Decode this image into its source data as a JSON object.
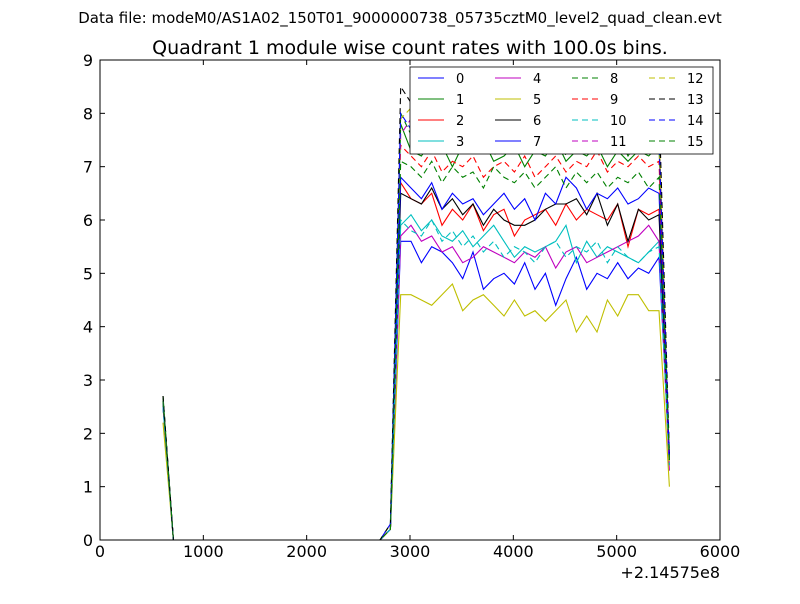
{
  "header": {
    "file_label": "Data file: modeM0/AS1A02_150T01_9000000738_05735cztM0_level2_quad_clean.evt"
  },
  "chart_data": {
    "type": "line",
    "title": "Quadrant 1 module wise count rates with 100.0s bins.",
    "xlabel": "",
    "ylabel": "",
    "x_offset_label": "+2.14575e8",
    "xlim": [
      0,
      6000
    ],
    "ylim": [
      0,
      9
    ],
    "x_ticks": [
      0,
      1000,
      2000,
      3000,
      4000,
      5000,
      6000
    ],
    "y_ticks": [
      0,
      1,
      2,
      3,
      4,
      5,
      6,
      7,
      8,
      9
    ],
    "grid": false,
    "legend_position": "top-right",
    "x": [
      610,
      710,
      2710,
      2810,
      2910,
      3010,
      3110,
      3210,
      3310,
      3410,
      3510,
      3610,
      3710,
      3810,
      3910,
      4010,
      4110,
      4210,
      4310,
      4410,
      4510,
      4610,
      4710,
      4810,
      4910,
      5010,
      5110,
      5210,
      5310,
      5410,
      5510
    ],
    "series": [
      {
        "name": "0",
        "color": "#0000ff",
        "dash": "solid",
        "values": [
          2.5,
          0,
          0,
          0.2,
          5.6,
          5.6,
          5.2,
          5.5,
          5.4,
          5.2,
          4.9,
          5.4,
          4.7,
          4.9,
          5.0,
          4.8,
          5.2,
          4.7,
          5.0,
          4.4,
          4.9,
          5.3,
          4.7,
          5.0,
          4.9,
          5.2,
          4.9,
          5.1,
          5.0,
          5.3,
          1.5
        ]
      },
      {
        "name": "1",
        "color": "#008000",
        "dash": "solid",
        "values": [
          2.7,
          0,
          0,
          0.2,
          7.8,
          7.3,
          7.2,
          7.5,
          7.4,
          7.0,
          7.4,
          7.3,
          7.5,
          7.1,
          7.2,
          7.4,
          7.0,
          7.3,
          7.2,
          7.5,
          7.1,
          7.3,
          7.2,
          7.4,
          7.0,
          7.3,
          7.1,
          7.3,
          7.2,
          7.4,
          1.5
        ]
      },
      {
        "name": "2",
        "color": "#ff0000",
        "dash": "solid",
        "values": [
          2.6,
          0,
          0,
          0.2,
          6.7,
          6.4,
          6.3,
          6.5,
          5.9,
          6.2,
          6.0,
          6.3,
          5.8,
          6.1,
          6.2,
          5.7,
          6.0,
          6.1,
          6.2,
          5.9,
          6.3,
          6.0,
          6.2,
          6.1,
          6.0,
          6.3,
          5.5,
          6.2,
          6.1,
          6.2,
          1.6
        ]
      },
      {
        "name": "3",
        "color": "#00bfbf",
        "dash": "solid",
        "values": [
          2.5,
          0,
          0,
          0.2,
          5.9,
          6.1,
          5.8,
          6.0,
          5.7,
          5.6,
          5.8,
          5.5,
          5.7,
          5.9,
          5.6,
          5.3,
          5.5,
          5.4,
          5.5,
          5.6,
          5.9,
          5.2,
          5.6,
          5.3,
          5.5,
          5.4,
          5.3,
          5.2,
          5.4,
          5.6,
          1.4
        ]
      },
      {
        "name": "4",
        "color": "#bf00bf",
        "dash": "solid",
        "values": [
          2.5,
          0,
          0,
          0.2,
          5.7,
          5.9,
          5.6,
          5.7,
          5.4,
          5.5,
          5.2,
          5.3,
          5.5,
          5.4,
          5.3,
          5.2,
          5.4,
          5.3,
          5.5,
          5.1,
          5.4,
          5.5,
          5.2,
          5.3,
          5.4,
          5.5,
          5.6,
          5.7,
          5.9,
          5.6,
          1.3
        ]
      },
      {
        "name": "5",
        "color": "#bfbf00",
        "dash": "solid",
        "values": [
          2.2,
          0,
          0,
          0.2,
          4.6,
          4.6,
          4.5,
          4.4,
          4.6,
          4.8,
          4.3,
          4.5,
          4.6,
          4.4,
          4.2,
          4.5,
          4.2,
          4.3,
          4.1,
          4.3,
          4.5,
          3.9,
          4.2,
          3.9,
          4.5,
          4.2,
          4.6,
          4.6,
          4.3,
          4.3,
          1.0
        ]
      },
      {
        "name": "6",
        "color": "#000000",
        "dash": "solid",
        "values": [
          2.6,
          0,
          0,
          0.2,
          6.5,
          6.4,
          6.3,
          6.6,
          6.2,
          6.4,
          6.1,
          6.3,
          5.9,
          6.2,
          6.0,
          5.9,
          5.9,
          6.0,
          6.2,
          6.3,
          6.3,
          6.4,
          6.1,
          6.5,
          5.9,
          6.3,
          5.6,
          6.2,
          6.0,
          6.1,
          1.5
        ]
      },
      {
        "name": "7",
        "color": "#0000ff",
        "dash": "solid",
        "values": [
          2.6,
          0,
          0,
          0.2,
          6.8,
          6.6,
          6.4,
          6.7,
          6.2,
          6.5,
          6.3,
          6.4,
          6.1,
          6.3,
          6.5,
          6.2,
          6.4,
          6.0,
          6.5,
          6.3,
          6.8,
          6.6,
          6.2,
          6.5,
          6.4,
          6.6,
          6.3,
          6.4,
          6.6,
          6.5,
          1.6
        ]
      },
      {
        "name": "8",
        "color": "#008000",
        "dash": "dashed",
        "values": [
          2.7,
          0,
          0,
          0.3,
          8.0,
          7.6,
          7.4,
          7.8,
          7.5,
          7.3,
          7.6,
          7.4,
          7.8,
          7.2,
          7.5,
          7.7,
          7.3,
          7.6,
          7.4,
          7.8,
          7.2,
          7.5,
          7.3,
          7.7,
          7.4,
          7.6,
          7.2,
          7.5,
          7.3,
          7.6,
          1.5
        ]
      },
      {
        "name": "9",
        "color": "#ff0000",
        "dash": "dashed",
        "values": [
          2.6,
          0,
          0,
          0.2,
          7.4,
          7.2,
          7.0,
          7.3,
          6.9,
          7.1,
          7.0,
          7.2,
          6.8,
          7.0,
          7.1,
          6.9,
          7.2,
          6.8,
          7.0,
          7.2,
          6.9,
          7.1,
          7.0,
          7.3,
          6.9,
          7.1,
          7.0,
          7.2,
          7.0,
          7.1,
          1.5
        ]
      },
      {
        "name": "10",
        "color": "#00bfbf",
        "dash": "dashed",
        "values": [
          2.5,
          0,
          0,
          0.2,
          6.0,
          5.8,
          5.7,
          6.0,
          5.6,
          5.8,
          5.5,
          5.7,
          5.4,
          5.6,
          5.3,
          5.5,
          5.4,
          5.2,
          5.5,
          5.6,
          5.3,
          5.5,
          5.4,
          5.6,
          5.2,
          5.5,
          5.3,
          5.2,
          5.4,
          5.5,
          1.4
        ]
      },
      {
        "name": "11",
        "color": "#bf00bf",
        "dash": "dashed",
        "values": [
          2.6,
          0,
          0,
          0.2,
          7.6,
          7.9,
          7.4,
          7.7,
          7.8,
          7.5,
          7.9,
          7.6,
          7.4,
          7.8,
          7.5,
          7.7,
          7.9,
          7.4,
          7.6,
          7.8,
          7.5,
          7.7,
          7.6,
          7.9,
          7.4,
          7.8,
          7.5,
          7.6,
          7.4,
          7.6,
          1.5
        ]
      },
      {
        "name": "12",
        "color": "#bfbf00",
        "dash": "dashed",
        "values": [
          2.6,
          0,
          0,
          0.2,
          7.9,
          8.1,
          7.8,
          8.0,
          7.7,
          8.2,
          7.9,
          8.0,
          7.8,
          8.1,
          7.9,
          7.8,
          8.0,
          7.7,
          8.1,
          7.9,
          8.0,
          7.8,
          8.1,
          7.9,
          8.0,
          7.8,
          8.0,
          7.9,
          8.1,
          7.8,
          1.4
        ]
      },
      {
        "name": "13",
        "color": "#000000",
        "dash": "dashed",
        "values": [
          2.7,
          0,
          0,
          0.3,
          8.5,
          8.2,
          8.0,
          8.6,
          8.1,
          8.4,
          8.0,
          8.3,
          8.1,
          8.5,
          8.0,
          8.2,
          8.4,
          8.1,
          8.3,
          8.0,
          8.4,
          8.1,
          8.3,
          8.0,
          8.4,
          8.2,
          8.1,
          8.3,
          8.0,
          8.2,
          1.6
        ]
      },
      {
        "name": "14",
        "color": "#0000ff",
        "dash": "dashed",
        "values": [
          2.6,
          0,
          0,
          0.3,
          8.0,
          7.7,
          7.5,
          7.9,
          7.4,
          7.7,
          7.5,
          7.8,
          7.3,
          7.6,
          7.8,
          7.4,
          7.7,
          7.5,
          7.8,
          7.4,
          7.6,
          7.5,
          7.7,
          7.4,
          7.8,
          7.5,
          7.6,
          7.4,
          7.7,
          7.5,
          1.5
        ]
      },
      {
        "name": "15",
        "color": "#008000",
        "dash": "dashed",
        "values": [
          2.6,
          0,
          0,
          0.2,
          7.1,
          7.0,
          6.8,
          7.1,
          6.7,
          7.0,
          6.8,
          6.9,
          6.6,
          7.0,
          6.8,
          6.7,
          6.9,
          6.6,
          6.8,
          7.0,
          6.6,
          6.9,
          6.7,
          6.9,
          6.6,
          6.8,
          6.7,
          6.9,
          6.6,
          6.8,
          1.5
        ]
      }
    ]
  }
}
